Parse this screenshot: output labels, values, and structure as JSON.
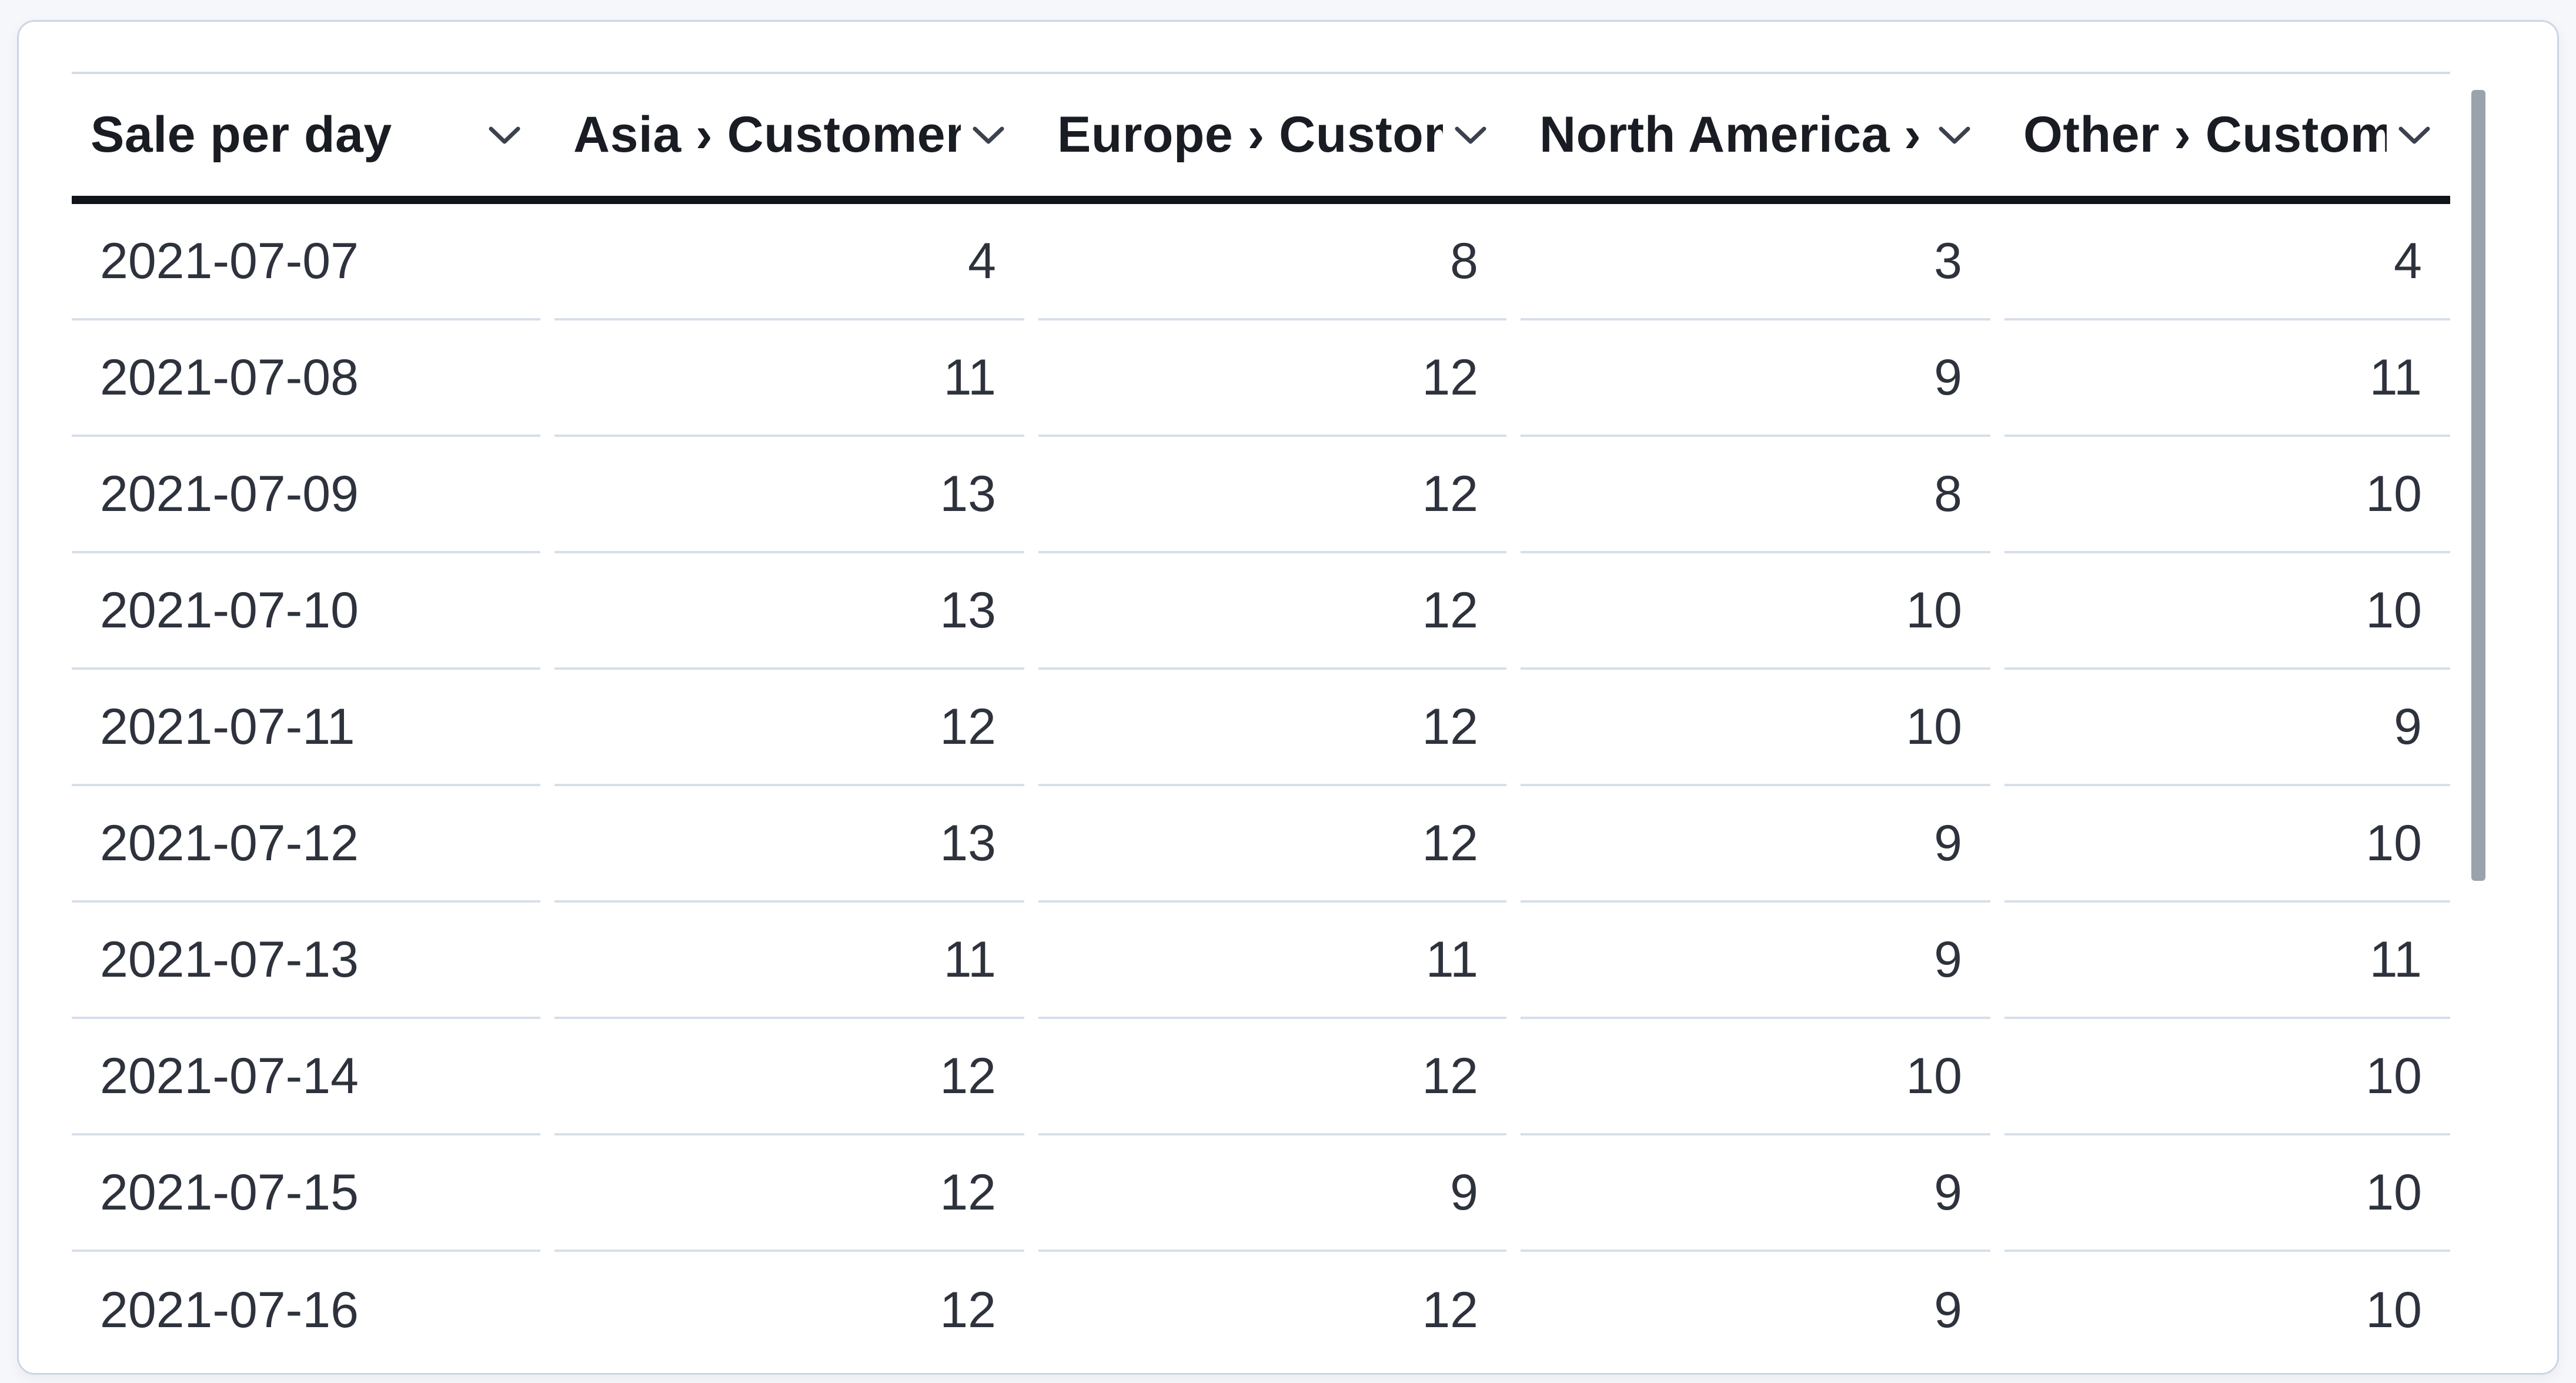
{
  "table": {
    "title": "Sale per day",
    "columns": [
      {
        "label": "Sale per day",
        "align": "left",
        "icon": "chevron-down-icon"
      },
      {
        "label": "Asia › Customers",
        "align": "right",
        "icon": "chevron-down-icon"
      },
      {
        "label": "Europe › Customers",
        "align": "right",
        "icon": "chevron-down-icon"
      },
      {
        "label": "North America › Customers",
        "align": "right",
        "icon": "chevron-down-icon"
      },
      {
        "label": "Other › Customers",
        "align": "right",
        "icon": "chevron-down-icon"
      }
    ],
    "rows": [
      {
        "date": "2021-07-07",
        "values": [
          4,
          8,
          3,
          4
        ]
      },
      {
        "date": "2021-07-08",
        "values": [
          11,
          12,
          9,
          11
        ]
      },
      {
        "date": "2021-07-09",
        "values": [
          13,
          12,
          8,
          10
        ]
      },
      {
        "date": "2021-07-10",
        "values": [
          13,
          12,
          10,
          10
        ]
      },
      {
        "date": "2021-07-11",
        "values": [
          12,
          12,
          10,
          9
        ]
      },
      {
        "date": "2021-07-12",
        "values": [
          13,
          12,
          9,
          10
        ]
      },
      {
        "date": "2021-07-13",
        "values": [
          11,
          11,
          9,
          11
        ]
      },
      {
        "date": "2021-07-14",
        "values": [
          12,
          12,
          10,
          10
        ]
      },
      {
        "date": "2021-07-15",
        "values": [
          12,
          9,
          9,
          10
        ]
      },
      {
        "date": "2021-07-16",
        "values": [
          12,
          12,
          9,
          10
        ]
      }
    ]
  },
  "scrollbar": {
    "orientation": "vertical",
    "thumb_at": "top"
  },
  "colors": {
    "page_background": "#f5f7fb",
    "card_background": "#ffffff",
    "card_border": "#ccd6e4",
    "table_top_rule": "#d3dce7",
    "header_underline": "#111418",
    "row_separator": "#d6dfea",
    "header_text": "#191c23",
    "body_text": "#2d323c",
    "chevron": "#3b414d",
    "scrollbar_thumb": "#9aa2ac"
  }
}
